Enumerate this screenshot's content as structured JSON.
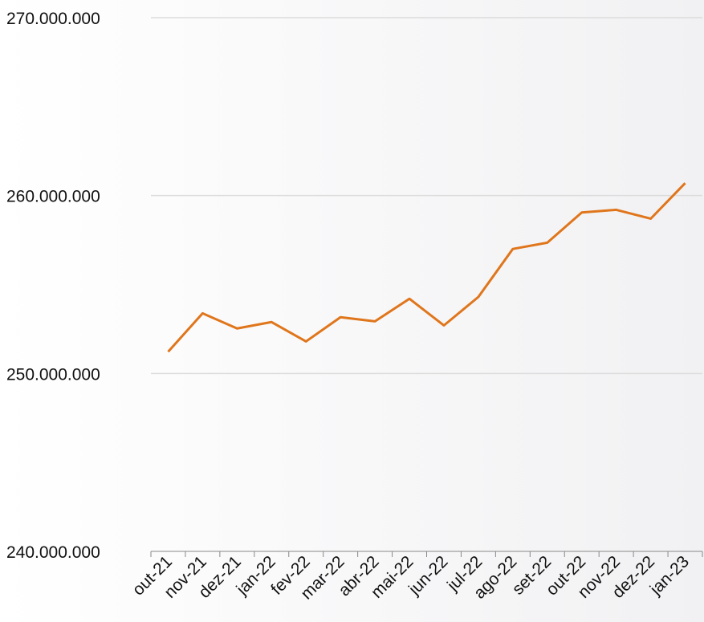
{
  "chart_data": {
    "type": "line",
    "categories": [
      "out-21",
      "nov-21",
      "dez-21",
      "jan-22",
      "fev-22",
      "mar-22",
      "abr-22",
      "mai-22",
      "jun-22",
      "jul-22",
      "ago-22",
      "set-22",
      "out-22",
      "nov-22",
      "dez-22",
      "jan-23"
    ],
    "series": [
      {
        "color": "#e0761c",
        "values": [
          251220000,
          253380000,
          252530000,
          252890000,
          251800000,
          253160000,
          252930000,
          254200000,
          252700000,
          254300000,
          257000000,
          257350000,
          259050000,
          259200000,
          258700000,
          260700000
        ]
      }
    ],
    "ylim": [
      240000000,
      270000000
    ],
    "yticks": [
      {
        "value": 240000000,
        "label": "240.000.000"
      },
      {
        "value": 250000000,
        "label": "250.000.000"
      },
      {
        "value": 260000000,
        "label": "260.000.000"
      },
      {
        "value": 270000000,
        "label": "270.000.000"
      }
    ],
    "grid": true
  }
}
